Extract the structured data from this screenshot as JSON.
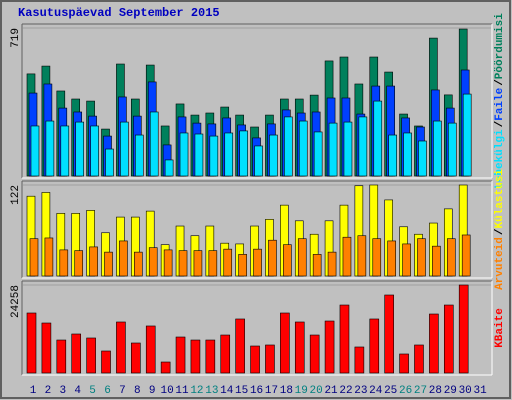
{
  "chart_data": [
    {
      "type": "bar",
      "title": "Kasutuspäevad September 2015",
      "categories": [
        "1",
        "2",
        "3",
        "4",
        "5",
        "6",
        "7",
        "8",
        "9",
        "10",
        "11",
        "12",
        "13",
        "14",
        "15",
        "16",
        "17",
        "18",
        "19",
        "20",
        "21",
        "22",
        "23",
        "24",
        "25",
        "26",
        "27",
        "28",
        "29",
        "30",
        "31"
      ],
      "legend_separator": "/",
      "series": [
        {
          "name": "Pöördumisi",
          "color": "#00805c",
          "values": [
            496,
            534,
            413,
            374,
            364,
            228,
            544,
            374,
            539,
            243,
            350,
            296,
            306,
            335,
            296,
            238,
            296,
            374,
            374,
            393,
            559,
            578,
            447,
            578,
            505,
            301,
            243,
            670,
            394,
            714,
            null
          ]
        },
        {
          "name": "Faile",
          "color": "#0040ff",
          "values": [
            403,
            447,
            330,
            311,
            291,
            194,
            384,
            291,
            457,
            151,
            287,
            257,
            253,
            282,
            248,
            185,
            253,
            321,
            306,
            311,
            379,
            379,
            301,
            437,
            437,
            282,
            238,
            418,
            330,
            515,
            null
          ]
        },
        {
          "name": "Lehekülgi",
          "color": "#00e0ff",
          "values": [
            243,
            267,
            243,
            262,
            243,
            131,
            262,
            199,
            311,
            78,
            209,
            204,
            194,
            209,
            219,
            146,
            199,
            287,
            267,
            214,
            257,
            262,
            287,
            364,
            199,
            209,
            170,
            267,
            257,
            398,
            null
          ]
        }
      ],
      "ylim": [
        0,
        719
      ],
      "yticks": [
        719
      ]
    },
    {
      "type": "bar",
      "categories": [
        "1",
        "2",
        "3",
        "4",
        "5",
        "6",
        "7",
        "8",
        "9",
        "10",
        "11",
        "12",
        "13",
        "14",
        "15",
        "16",
        "17",
        "18",
        "19",
        "20",
        "21",
        "22",
        "23",
        "24",
        "25",
        "26",
        "27",
        "28",
        "29",
        "30",
        "31"
      ],
      "legend_separator": "/",
      "series": [
        {
          "name": "Külastusi",
          "color": "#ffff00",
          "values": [
            107,
            112,
            84,
            84,
            88,
            58,
            79,
            79,
            87,
            42,
            67,
            54,
            67,
            44,
            43,
            67,
            76,
            95,
            74,
            56,
            74,
            95,
            121,
            122,
            102,
            66,
            56,
            71,
            90,
            122,
            null
          ]
        },
        {
          "name": "Arvuteid",
          "color": "#ff8000",
          "values": [
            50,
            51,
            35,
            34,
            39,
            32,
            47,
            32,
            38,
            35,
            34,
            34,
            34,
            36,
            29,
            36,
            48,
            42,
            50,
            29,
            32,
            52,
            54,
            50,
            47,
            43,
            50,
            40,
            50,
            55,
            null
          ]
        }
      ],
      "ylim": [
        0,
        122
      ],
      "yticks": [
        122
      ]
    },
    {
      "type": "bar",
      "categories": [
        "1",
        "2",
        "3",
        "4",
        "5",
        "6",
        "7",
        "8",
        "9",
        "10",
        "11",
        "12",
        "13",
        "14",
        "15",
        "16",
        "17",
        "18",
        "19",
        "20",
        "21",
        "22",
        "23",
        "24",
        "25",
        "26",
        "27",
        "28",
        "29",
        "30",
        "31"
      ],
      "category_colors": [
        "#000080",
        "#000080",
        "#000080",
        "#000080",
        "#008080",
        "#008080",
        "#000080",
        "#000080",
        "#000080",
        "#000080",
        "#000080",
        "#008080",
        "#008080",
        "#000080",
        "#000080",
        "#000080",
        "#000080",
        "#000080",
        "#008080",
        "#008080",
        "#000080",
        "#000080",
        "#000080",
        "#000080",
        "#000080",
        "#008080",
        "#008080",
        "#000080",
        "#000080",
        "#000080",
        "#000080"
      ],
      "series": [
        {
          "name": "KBaite",
          "color": "#ff0000",
          "values": [
            16540,
            13780,
            9090,
            10750,
            9650,
            6065,
            14060,
            8270,
            12960,
            3030,
            9920,
            9090,
            9090,
            10470,
            14890,
            7440,
            7720,
            16540,
            14060,
            10470,
            14330,
            18740,
            7170,
            14890,
            21500,
            5240,
            7720,
            16260,
            18740,
            24258,
            null
          ]
        }
      ],
      "ylim": [
        0,
        24258
      ],
      "yticks": [
        24258
      ]
    }
  ]
}
